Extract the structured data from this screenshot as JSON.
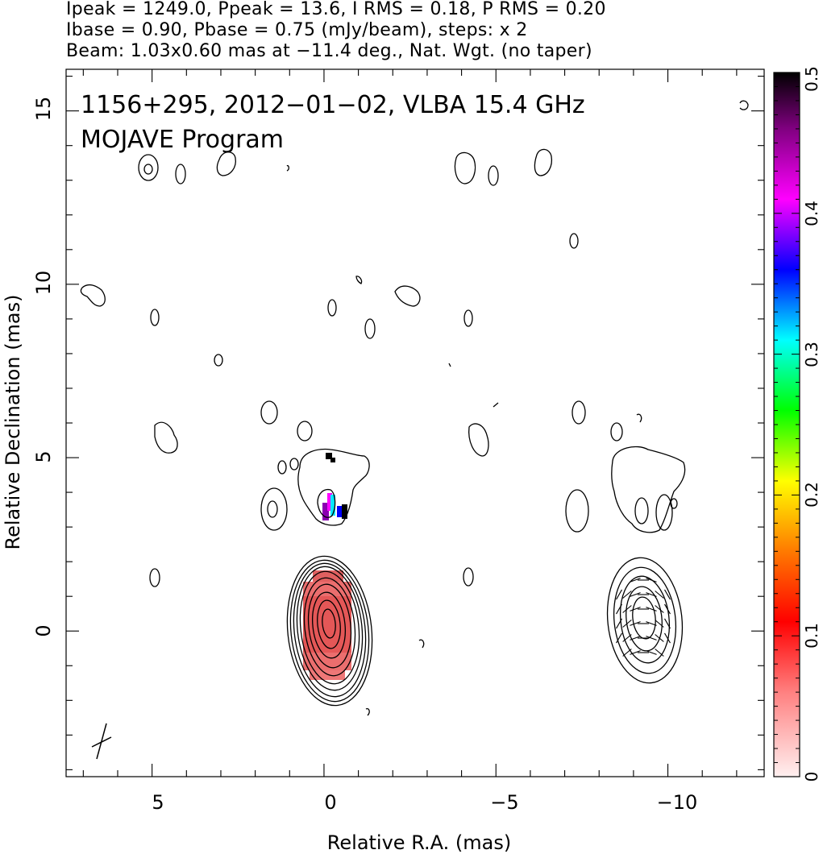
{
  "header": {
    "line1": "Ipeak = 1249.0, Ppeak = 13.6, I RMS = 0.18, P RMS = 0.20",
    "line2": "Ibase = 0.90, Pbase = 0.75 (mJy/beam), steps: x 2",
    "line3": "Beam: 1.03x0.60 mas at −11.4 deg., Nat. Wgt. (no taper)"
  },
  "chart_data": [
    {
      "type": "contour",
      "title": "1156+295, 2012−01−02, VLBA 15.4 GHz",
      "subtitle": "MOJAVE Program",
      "xlabel": "Relative R.A. (mas)",
      "ylabel": "Relative Declination (mas)",
      "xlim": [
        7.5,
        -12.8
      ],
      "ylim": [
        -4.2,
        16.2
      ],
      "x_ticks": [
        5,
        0,
        -5,
        -10
      ],
      "x_tick_labels": [
        "5",
        "0",
        "−5",
        "−10"
      ],
      "y_ticks": [
        0,
        5,
        10,
        15
      ],
      "y_tick_labels": [
        "0",
        "5",
        "10",
        "15"
      ],
      "core_total_intensity_center": [
        0.1,
        0.2
      ],
      "core_polarization_center": [
        -8.9,
        0.2
      ],
      "contour_levels_mJy_per_beam": [
        0.9,
        1.8,
        3.6,
        7.2,
        14.4,
        28.8,
        57.6,
        115.2,
        230.4,
        460.8,
        921.6
      ],
      "beam": {
        "major_mas": 1.03,
        "minor_mas": 0.6,
        "pa_deg": -11.4
      }
    },
    {
      "type": "colorbar",
      "range": [
        0,
        0.5
      ],
      "tick_labels": [
        "0",
        "0.1",
        "0.2",
        "0.3",
        "0.4",
        "0.5"
      ],
      "tick_values": [
        0,
        0.1,
        0.2,
        0.3,
        0.4,
        0.5
      ]
    }
  ]
}
